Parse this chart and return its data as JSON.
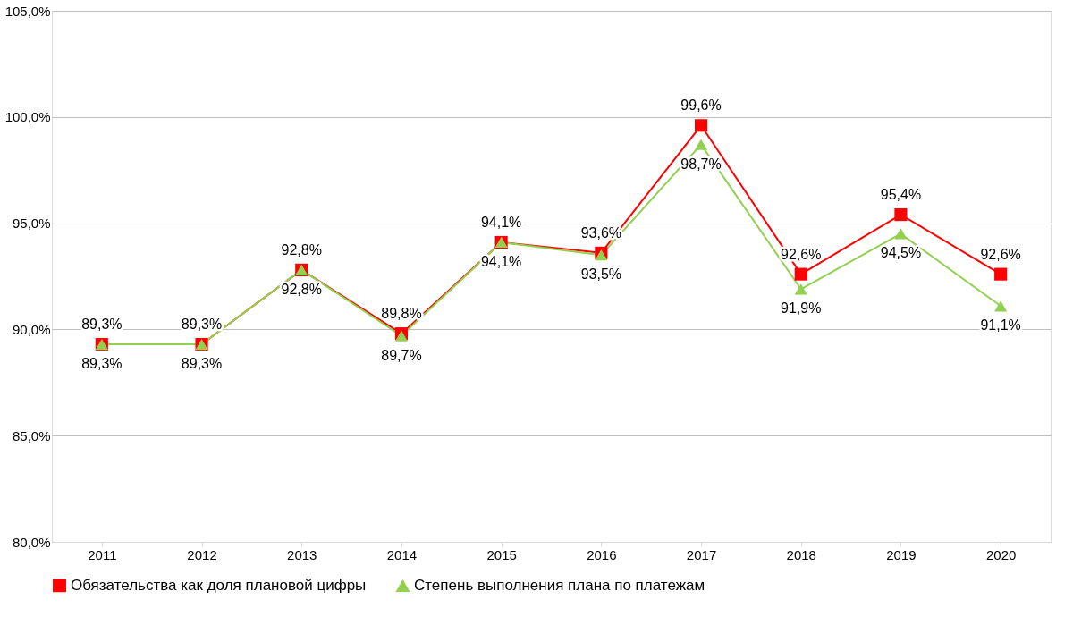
{
  "chart_data": {
    "type": "line",
    "categories": [
      "2011",
      "2012",
      "2013",
      "2014",
      "2015",
      "2016",
      "2017",
      "2018",
      "2019",
      "2020"
    ],
    "ylim": [
      80,
      105
    ],
    "yticks": [
      {
        "value": 80,
        "label": "80,0%"
      },
      {
        "value": 85,
        "label": "85,0%"
      },
      {
        "value": 90,
        "label": "90,0%"
      },
      {
        "value": 95,
        "label": "95,0%"
      },
      {
        "value": 100,
        "label": "100,0%"
      },
      {
        "value": 105,
        "label": "105,0%"
      }
    ],
    "grid": "y",
    "legend": "bottom",
    "line_style": "solid",
    "series": [
      {
        "name": "Обязательства как доля плановой цифры",
        "color": "#ff0000",
        "marker": "square",
        "values": [
          89.3,
          89.3,
          92.8,
          89.8,
          94.1,
          93.6,
          99.6,
          92.6,
          95.4,
          92.6
        ],
        "value_labels": [
          "89,3%",
          "89,3%",
          "92,8%",
          "89,8%",
          "94,1%",
          "93,6%",
          "99,6%",
          "92,6%",
          "95,4%",
          "92,6%"
        ]
      },
      {
        "name": "Степень выполнения плана по платежам",
        "color": "#92d050",
        "marker": "triangle",
        "values": [
          89.3,
          89.3,
          92.8,
          89.7,
          94.1,
          93.5,
          98.7,
          91.9,
          94.5,
          91.1
        ],
        "value_labels": [
          "89,3%",
          "89,3%",
          "92,8%",
          "89,7%",
          "94,1%",
          "93,5%",
          "98,7%",
          "91,9%",
          "94,5%",
          "91,1%"
        ]
      }
    ]
  }
}
